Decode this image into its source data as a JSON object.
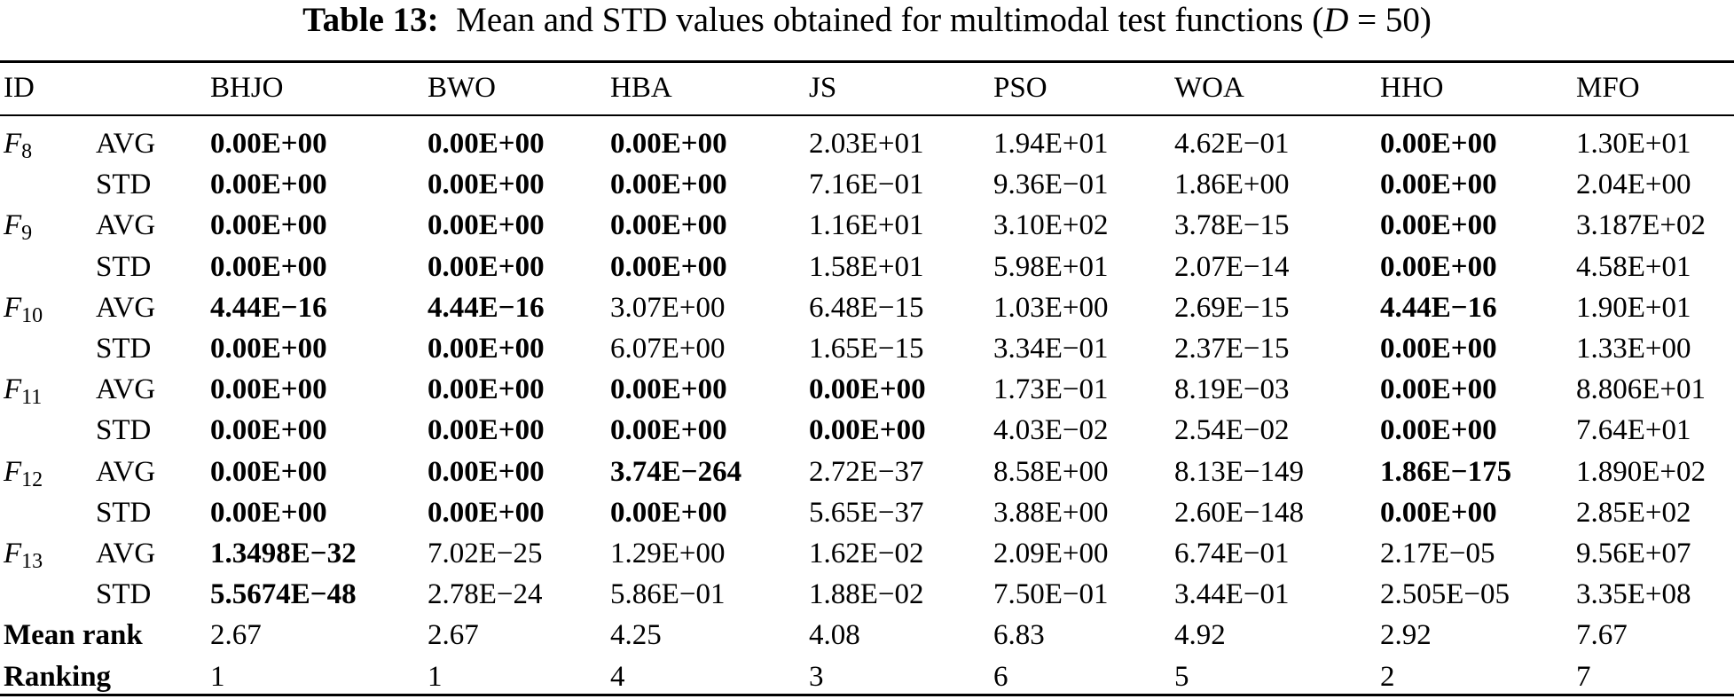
{
  "caption": {
    "label": "Table 13:",
    "text_before": "Mean and STD values obtained for multimodal test functions (",
    "math_var": "D",
    "math_rest": " = 50)"
  },
  "header": {
    "id": "ID",
    "algorithms": [
      "BHJO",
      "BWO",
      "HBA",
      "JS",
      "PSO",
      "WOA",
      "HHO",
      "MFO"
    ]
  },
  "rows": [
    {
      "func": "F",
      "sub": "8",
      "stat": "AVG",
      "values": [
        "0.00E+00",
        "0.00E+00",
        "0.00E+00",
        "2.03E+01",
        "1.94E+01",
        "4.62E−01",
        "0.00E+00",
        "1.30E+01"
      ],
      "bold": [
        true,
        true,
        true,
        false,
        false,
        false,
        true,
        false
      ]
    },
    {
      "func": "",
      "sub": "",
      "stat": "STD",
      "values": [
        "0.00E+00",
        "0.00E+00",
        "0.00E+00",
        "7.16E−01",
        "9.36E−01",
        "1.86E+00",
        "0.00E+00",
        "2.04E+00"
      ],
      "bold": [
        true,
        true,
        true,
        false,
        false,
        false,
        true,
        false
      ]
    },
    {
      "func": "F",
      "sub": "9",
      "stat": "AVG",
      "values": [
        "0.00E+00",
        "0.00E+00",
        "0.00E+00",
        "1.16E+01",
        "3.10E+02",
        "3.78E−15",
        "0.00E+00",
        "3.187E+02"
      ],
      "bold": [
        true,
        true,
        true,
        false,
        false,
        false,
        true,
        false
      ]
    },
    {
      "func": "",
      "sub": "",
      "stat": "STD",
      "values": [
        "0.00E+00",
        "0.00E+00",
        "0.00E+00",
        "1.58E+01",
        "5.98E+01",
        "2.07E−14",
        "0.00E+00",
        "4.58E+01"
      ],
      "bold": [
        true,
        true,
        true,
        false,
        false,
        false,
        true,
        false
      ]
    },
    {
      "func": "F",
      "sub": "10",
      "stat": "AVG",
      "values": [
        "4.44E−16",
        "4.44E−16",
        "3.07E+00",
        "6.48E−15",
        "1.03E+00",
        "2.69E−15",
        "4.44E−16",
        "1.90E+01"
      ],
      "bold": [
        true,
        true,
        false,
        false,
        false,
        false,
        true,
        false
      ]
    },
    {
      "func": "",
      "sub": "",
      "stat": "STD",
      "values": [
        "0.00E+00",
        "0.00E+00",
        "6.07E+00",
        "1.65E−15",
        "3.34E−01",
        "2.37E−15",
        "0.00E+00",
        "1.33E+00"
      ],
      "bold": [
        true,
        true,
        false,
        false,
        false,
        false,
        true,
        false
      ]
    },
    {
      "func": "F",
      "sub": "11",
      "stat": "AVG",
      "values": [
        "0.00E+00",
        "0.00E+00",
        "0.00E+00",
        "0.00E+00",
        "1.73E−01",
        "8.19E−03",
        "0.00E+00",
        "8.806E+01"
      ],
      "bold": [
        true,
        true,
        true,
        true,
        false,
        false,
        true,
        false
      ]
    },
    {
      "func": "",
      "sub": "",
      "stat": "STD",
      "values": [
        "0.00E+00",
        "0.00E+00",
        "0.00E+00",
        "0.00E+00",
        "4.03E−02",
        "2.54E−02",
        "0.00E+00",
        "7.64E+01"
      ],
      "bold": [
        true,
        true,
        true,
        true,
        false,
        false,
        true,
        false
      ]
    },
    {
      "func": "F",
      "sub": "12",
      "stat": "AVG",
      "values": [
        "0.00E+00",
        "0.00E+00",
        "3.74E−264",
        "2.72E−37",
        "8.58E+00",
        "8.13E−149",
        "1.86E−175",
        "1.890E+02"
      ],
      "bold": [
        true,
        true,
        true,
        false,
        false,
        false,
        true,
        false
      ]
    },
    {
      "func": "",
      "sub": "",
      "stat": "STD",
      "values": [
        "0.00E+00",
        "0.00E+00",
        "0.00E+00",
        "5.65E−37",
        "3.88E+00",
        "2.60E−148",
        "0.00E+00",
        "2.85E+02"
      ],
      "bold": [
        true,
        true,
        true,
        false,
        false,
        false,
        true,
        false
      ]
    },
    {
      "func": "F",
      "sub": "13",
      "stat": "AVG",
      "values": [
        "1.3498E−32",
        "7.02E−25",
        "1.29E+00",
        "1.62E−02",
        "2.09E+00",
        "6.74E−01",
        "2.17E−05",
        "9.56E+07"
      ],
      "bold": [
        true,
        false,
        false,
        false,
        false,
        false,
        false,
        false
      ]
    },
    {
      "func": "",
      "sub": "",
      "stat": "STD",
      "values": [
        "5.5674E−48",
        "2.78E−24",
        "5.86E−01",
        "1.88E−02",
        "7.50E−01",
        "3.44E−01",
        "2.505E−05",
        "3.35E+08"
      ],
      "bold": [
        true,
        false,
        false,
        false,
        false,
        false,
        false,
        false
      ]
    }
  ],
  "summary": [
    {
      "label": "Mean rank",
      "values": [
        "2.67",
        "2.67",
        "4.25",
        "4.08",
        "6.83",
        "4.92",
        "2.92",
        "7.67"
      ]
    },
    {
      "label": "Ranking",
      "values": [
        "1",
        "1",
        "4",
        "3",
        "6",
        "5",
        "2",
        "7"
      ]
    }
  ]
}
